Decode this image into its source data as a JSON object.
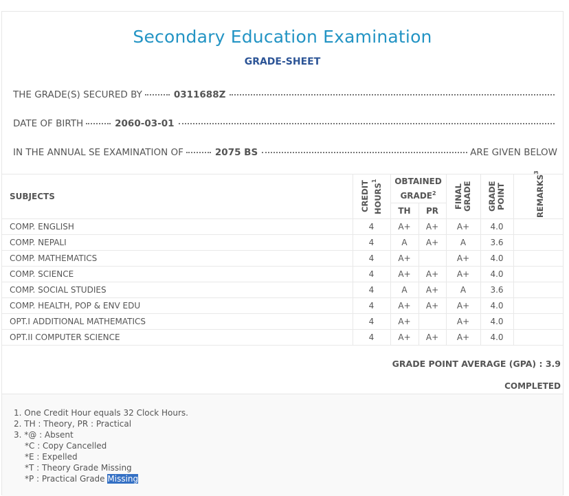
{
  "header": {
    "title": "Secondary Education Examination",
    "subtitle": "GRADE-SHEET"
  },
  "info": [
    {
      "label": "THE GRADE(S) SECURED BY",
      "value": "0311688Z"
    },
    {
      "label": "DATE OF BIRTH",
      "value": "2060-03-01"
    },
    {
      "label": "IN THE ANNUAL SE EXAMINATION OF",
      "value": "2075 BS",
      "suffix": "ARE GIVEN BELOW"
    }
  ],
  "table": {
    "header": {
      "subjects": "SUBJECTS",
      "credit": {
        "text": "CREDIT HOURS",
        "note": "1"
      },
      "obtained": {
        "text": "OBTAINED GRADE",
        "note": "2"
      },
      "th": "TH",
      "pr": "PR",
      "final": "FINAL GRADE",
      "point": "GRADE POINT",
      "remarks": {
        "text": "REMARKS",
        "note": "3"
      }
    },
    "rows": [
      [
        "COMP. ENGLISH",
        4,
        "A+",
        "A+",
        "A+",
        "4.0",
        null
      ],
      [
        "COMP. NEPALI",
        4,
        "A",
        "A+",
        "A",
        "3.6",
        null
      ],
      [
        "COMP. MATHEMATICS",
        4,
        "A+",
        null,
        "A+",
        "4.0",
        null
      ],
      [
        "COMP. SCIENCE",
        4,
        "A+",
        "A+",
        "A+",
        "4.0",
        null
      ],
      [
        "COMP. SOCIAL STUDIES",
        4,
        "A",
        "A+",
        "A",
        "3.6",
        null
      ],
      [
        "COMP. HEALTH, POP & ENV EDU",
        4,
        "A+",
        "A+",
        "A+",
        "4.0",
        null
      ],
      [
        "OPT.I ADDITIONAL MATHEMATICS",
        4,
        "A+",
        null,
        "A+",
        "4.0",
        null
      ],
      [
        "OPT.II COMPUTER SCIENCE",
        4,
        "A+",
        "A+",
        "A+",
        "4.0",
        null
      ]
    ]
  },
  "summary": {
    "gpa_label": "GRADE POINT AVERAGE (GPA) :",
    "gpa": "3.9",
    "status": "COMPLETED"
  },
  "notes": [
    {
      "text": "1. One Credit Hour equals 32 Clock Hours."
    },
    {
      "text": "2. TH : Theory, PR : Practical"
    },
    {
      "text": "3. *@ : Absent",
      "sub": [
        {
          "text": "*C : Copy Cancelled"
        },
        {
          "text": "*E : Expelled"
        },
        {
          "text": "*T : Theory Grade Missing"
        },
        {
          "text": "*P : Practical Grade",
          "selected": "Missing"
        }
      ]
    }
  ]
}
